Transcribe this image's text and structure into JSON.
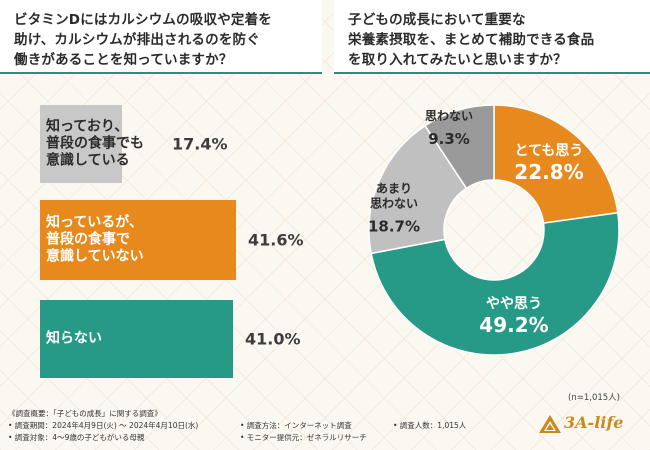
{
  "left_question": {
    "lines": [
      "ビタミンDにはカルシウムの吸収や定着を",
      "助け、カルシウムが排出されるのを防ぐ",
      "働きがあることを知っていますか？"
    ]
  },
  "right_question": {
    "lines": [
      "子どもの成長において重要な",
      "栄養素摂取を、まとめて補助できる食品",
      "を取り入れてみたいと思いますか？"
    ]
  },
  "sample_size": "(n=1,015人)",
  "footer": {
    "title": "《調査概要：「子どもの成長」に関する調査》",
    "period": "• 調査期間：2024年4月9日(火) ～ 2024年4月10日(水)",
    "target": "• 調査対象：4～9歳の子どもがいる母親",
    "method": "• 調査方法：インターネット調査",
    "provider": "• モニター提供元：ゼネラルリサーチ",
    "count": "• 調査人数：1,015人"
  },
  "logo": {
    "text": "3A-life",
    "icon": "leaf-triangle-icon"
  },
  "colors": {
    "orange": "#e8891d",
    "teal": "#269a86",
    "gray": "#c8c8c8",
    "light_gray": "#c0c0c0",
    "dark_gray": "#9a9a9a"
  },
  "chart_data": [
    {
      "type": "bar",
      "orientation": "horizontal",
      "title": "ビタミンDにはカルシウムの吸収や定着を助け、カルシウムが排出されるのを防ぐ働きがあることを知っていますか？",
      "categories": [
        [
          "知っており、",
          "普段の食事でも",
          "意識している"
        ],
        [
          "知っているが、",
          "普段の食事で",
          "意識していない"
        ],
        [
          "知らない"
        ]
      ],
      "values": [
        17.4,
        41.6,
        41.0
      ],
      "value_labels": [
        "17.4%",
        "41.6%",
        "41.0%"
      ],
      "unit": "%",
      "colors": [
        "#c8c8c8",
        "#e8891d",
        "#269a86"
      ]
    },
    {
      "type": "pie",
      "style": "donut",
      "title": "子どもの成長において重要な栄養素摂取を、まとめて補助できる食品を取り入れてみたいと思いますか？",
      "slices": [
        {
          "label": [
            "とても思う"
          ],
          "value": 22.8,
          "value_label": "22.8%",
          "color": "#e8891d",
          "text_color": "#ffffff"
        },
        {
          "label": [
            "やや思う"
          ],
          "value": 49.2,
          "value_label": "49.2%",
          "color": "#269a86",
          "text_color": "#ffffff"
        },
        {
          "label": [
            "あまり",
            "思わない"
          ],
          "value": 18.7,
          "value_label": "18.7%",
          "color": "#c0c0c0",
          "text_color": "#2b2b2b"
        },
        {
          "label": [
            "思わない"
          ],
          "value": 9.3,
          "value_label": "9.3%",
          "color": "#9a9a9a",
          "text_color": "#2b2b2b"
        }
      ]
    }
  ]
}
